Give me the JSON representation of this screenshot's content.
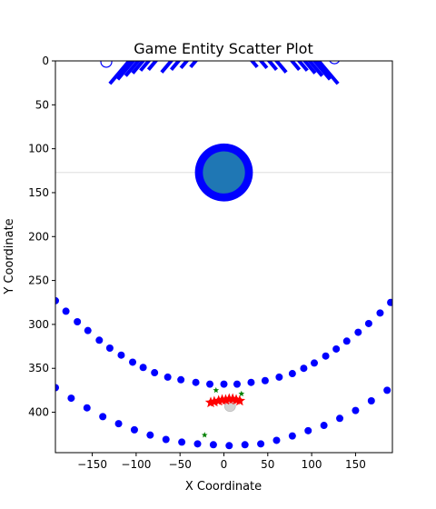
{
  "chart_data": {
    "type": "scatter",
    "title": "Game Entity Scatter Plot",
    "xlabel": "X Coordinate",
    "ylabel": "Y Coordinate",
    "xlim": [
      -192,
      192
    ],
    "ylim": [
      446,
      0
    ],
    "y_inverted": true,
    "grid": false,
    "legend": "none",
    "x_ticks": [
      -150,
      -100,
      -50,
      0,
      50,
      100,
      150
    ],
    "y_ticks": [
      0,
      50,
      100,
      150,
      200,
      250,
      300,
      350,
      400
    ],
    "colors": {
      "enemy": "#0000ff",
      "player": "#ff0000",
      "pickup": "#008000",
      "orb_fill": "#1f77b4",
      "orb_ring": "#0000ff",
      "horizon": "#dddddd",
      "ghost": "#d3d3d3"
    },
    "horizon_line": {
      "y": 127
    },
    "upper_arc": {
      "points": [
        [
          -192,
          273
        ],
        [
          -180,
          285
        ],
        [
          -167,
          297
        ],
        [
          -155,
          307
        ],
        [
          -142,
          318
        ],
        [
          -130,
          327
        ],
        [
          -117,
          335
        ],
        [
          -104,
          343
        ],
        [
          -92,
          349
        ],
        [
          -79,
          355
        ],
        [
          -64,
          360
        ],
        [
          -49,
          363
        ],
        [
          -32,
          366
        ],
        [
          -16,
          368
        ],
        [
          0,
          368
        ],
        [
          15,
          368
        ],
        [
          31,
          366
        ],
        [
          47,
          364
        ],
        [
          63,
          360
        ],
        [
          78,
          356
        ],
        [
          91,
          350
        ],
        [
          103,
          344
        ],
        [
          116,
          336
        ],
        [
          128,
          328
        ],
        [
          140,
          319
        ],
        [
          153,
          309
        ],
        [
          165,
          299
        ],
        [
          178,
          287
        ],
        [
          190,
          275
        ]
      ]
    },
    "lower_arc": {
      "points": [
        [
          -192,
          372
        ],
        [
          -174,
          384
        ],
        [
          -156,
          395
        ],
        [
          -138,
          405
        ],
        [
          -120,
          413
        ],
        [
          -102,
          420
        ],
        [
          -84,
          426
        ],
        [
          -66,
          431
        ],
        [
          -48,
          434
        ],
        [
          -30,
          436
        ],
        [
          -12,
          437
        ],
        [
          6,
          438
        ],
        [
          24,
          437
        ],
        [
          42,
          436
        ],
        [
          60,
          432
        ],
        [
          78,
          427
        ],
        [
          96,
          421
        ],
        [
          114,
          415
        ],
        [
          132,
          407
        ],
        [
          150,
          398
        ],
        [
          168,
          387
        ],
        [
          186,
          375
        ]
      ]
    },
    "player_stars": {
      "points": [
        [
          -15,
          389
        ],
        [
          -11,
          388
        ],
        [
          -6,
          387
        ],
        [
          -2,
          386
        ],
        [
          2,
          386
        ],
        [
          6,
          385
        ],
        [
          10,
          385
        ],
        [
          14,
          386
        ],
        [
          18,
          387
        ]
      ]
    },
    "pickups": {
      "points": [
        [
          -9,
          375
        ],
        [
          20,
          379
        ],
        [
          -22,
          426
        ]
      ]
    },
    "ghost": {
      "x": 7,
      "y": 393
    },
    "orb": {
      "x": 0,
      "y": 127,
      "ring_radius": 33,
      "core_radius": 24
    },
    "spikes": {
      "points": [
        [
          -130,
          26
        ],
        [
          -121,
          21
        ],
        [
          -112,
          17
        ],
        [
          -104,
          14
        ],
        [
          -95,
          11
        ],
        [
          -86,
          10
        ],
        [
          -71,
          13
        ],
        [
          -60,
          10
        ],
        [
          -49,
          8
        ],
        [
          -38,
          7
        ],
        [
          38,
          7
        ],
        [
          49,
          8
        ],
        [
          60,
          10
        ],
        [
          71,
          13
        ],
        [
          86,
          10
        ],
        [
          95,
          11
        ],
        [
          104,
          14
        ],
        [
          112,
          17
        ],
        [
          121,
          21
        ],
        [
          130,
          26
        ]
      ]
    },
    "top_hollow_circles": {
      "points": [
        [
          -134,
          1
        ],
        [
          126,
          -3
        ]
      ]
    }
  }
}
